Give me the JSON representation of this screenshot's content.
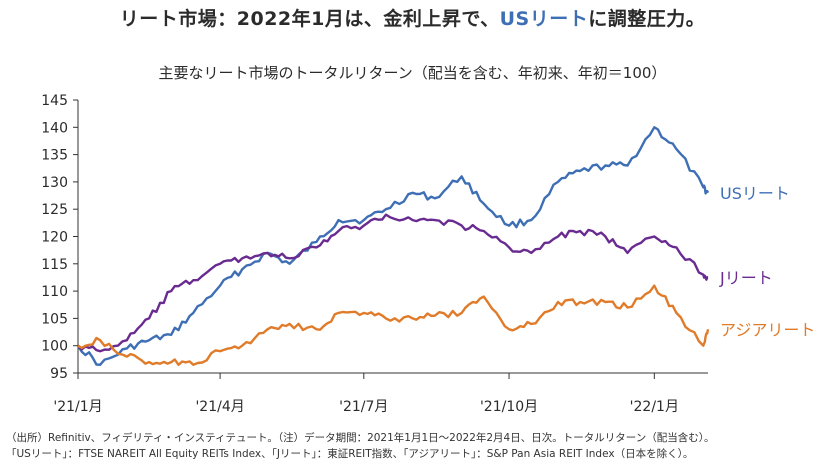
{
  "headline": {
    "prefix": "リート市場：2022年1月は、金利上昇で、",
    "accent": "USリート",
    "suffix": "に調整圧力。"
  },
  "chart_data": {
    "type": "line",
    "title": "主要なリート市場のトータルリターン（配当を含む、年初来、年初＝100）",
    "xlabel": "",
    "ylabel": "",
    "ylim": [
      95,
      145
    ],
    "yticks": [
      95,
      100,
      105,
      110,
      115,
      120,
      125,
      130,
      135,
      140,
      145
    ],
    "xlim": [
      "2021-01-01",
      "2022-02-04"
    ],
    "xticks": [
      {
        "date": "2021-01-01",
        "label": "'21/1月"
      },
      {
        "date": "2021-04-01",
        "label": "'21/4月"
      },
      {
        "date": "2021-07-01",
        "label": "'21/7月"
      },
      {
        "date": "2021-10-01",
        "label": "'21/10月"
      },
      {
        "date": "2022-01-01",
        "label": "'22/1月"
      }
    ],
    "grid": false,
    "legend": "end-of-line labels",
    "series": [
      {
        "name": "USリート",
        "color": "#3e6fb5",
        "x": [
          "2021-01-01",
          "2021-01-15",
          "2021-02-01",
          "2021-02-15",
          "2021-03-01",
          "2021-03-15",
          "2021-04-01",
          "2021-04-15",
          "2021-05-01",
          "2021-05-15",
          "2021-06-01",
          "2021-06-15",
          "2021-07-01",
          "2021-07-15",
          "2021-08-01",
          "2021-08-15",
          "2021-09-01",
          "2021-09-15",
          "2021-10-01",
          "2021-10-15",
          "2021-11-01",
          "2021-11-15",
          "2021-12-01",
          "2021-12-15",
          "2022-01-01",
          "2022-01-15",
          "2022-02-01",
          "2022-02-04"
        ],
        "values": [
          100,
          96.5,
          99.5,
          101,
          102,
          106,
          111,
          114,
          117,
          115,
          119,
          123,
          123,
          125,
          128,
          127,
          131,
          126,
          122,
          123,
          130,
          132,
          133,
          133,
          140,
          136,
          129,
          128
        ]
      },
      {
        "name": "Jリート",
        "color": "#6a2b91",
        "x": [
          "2021-01-01",
          "2021-01-15",
          "2021-02-01",
          "2021-02-15",
          "2021-03-01",
          "2021-03-15",
          "2021-04-01",
          "2021-04-15",
          "2021-05-01",
          "2021-05-15",
          "2021-06-01",
          "2021-06-15",
          "2021-07-01",
          "2021-07-15",
          "2021-08-01",
          "2021-08-15",
          "2021-09-01",
          "2021-09-15",
          "2021-10-01",
          "2021-10-15",
          "2021-11-01",
          "2021-11-15",
          "2021-12-01",
          "2021-12-15",
          "2022-01-01",
          "2022-01-15",
          "2022-02-01",
          "2022-02-04"
        ],
        "values": [
          100,
          99,
          101,
          105,
          110,
          112,
          115,
          116,
          117,
          116,
          118,
          121,
          122,
          124,
          123,
          123,
          122,
          121,
          118,
          117,
          120,
          121,
          120,
          117,
          120,
          118,
          113,
          112.5
        ]
      },
      {
        "name": "アジアリート",
        "color": "#e07b2a",
        "x": [
          "2021-01-01",
          "2021-01-15",
          "2021-02-01",
          "2021-02-15",
          "2021-03-01",
          "2021-03-15",
          "2021-04-01",
          "2021-04-15",
          "2021-05-01",
          "2021-05-15",
          "2021-06-01",
          "2021-06-15",
          "2021-07-01",
          "2021-07-15",
          "2021-08-01",
          "2021-08-15",
          "2021-09-01",
          "2021-09-15",
          "2021-10-01",
          "2021-10-15",
          "2021-11-01",
          "2021-11-15",
          "2021-12-01",
          "2021-12-15",
          "2022-01-01",
          "2022-01-15",
          "2022-02-01",
          "2022-02-04"
        ],
        "values": [
          100,
          101,
          98,
          97,
          97,
          96.5,
          99,
          100,
          103,
          104,
          103,
          106,
          106,
          105,
          105,
          105.5,
          106,
          109,
          103,
          104,
          108,
          108,
          108,
          107,
          111,
          106,
          100,
          103
        ]
      }
    ]
  },
  "footnotes": {
    "line1": "（出所）Refinitiv、フィデリティ・インスティテュート。（注）データ期間：2021年1月1日～2022年2月4日、日次。トータルリターン（配当含む）。",
    "line2": "「USリート」：FTSE NAREIT All Equity REITs Index、「Jリート」：東証REIT指数、「アジアリート」：S&P Pan Asia REIT Index（日本を除く）。"
  }
}
